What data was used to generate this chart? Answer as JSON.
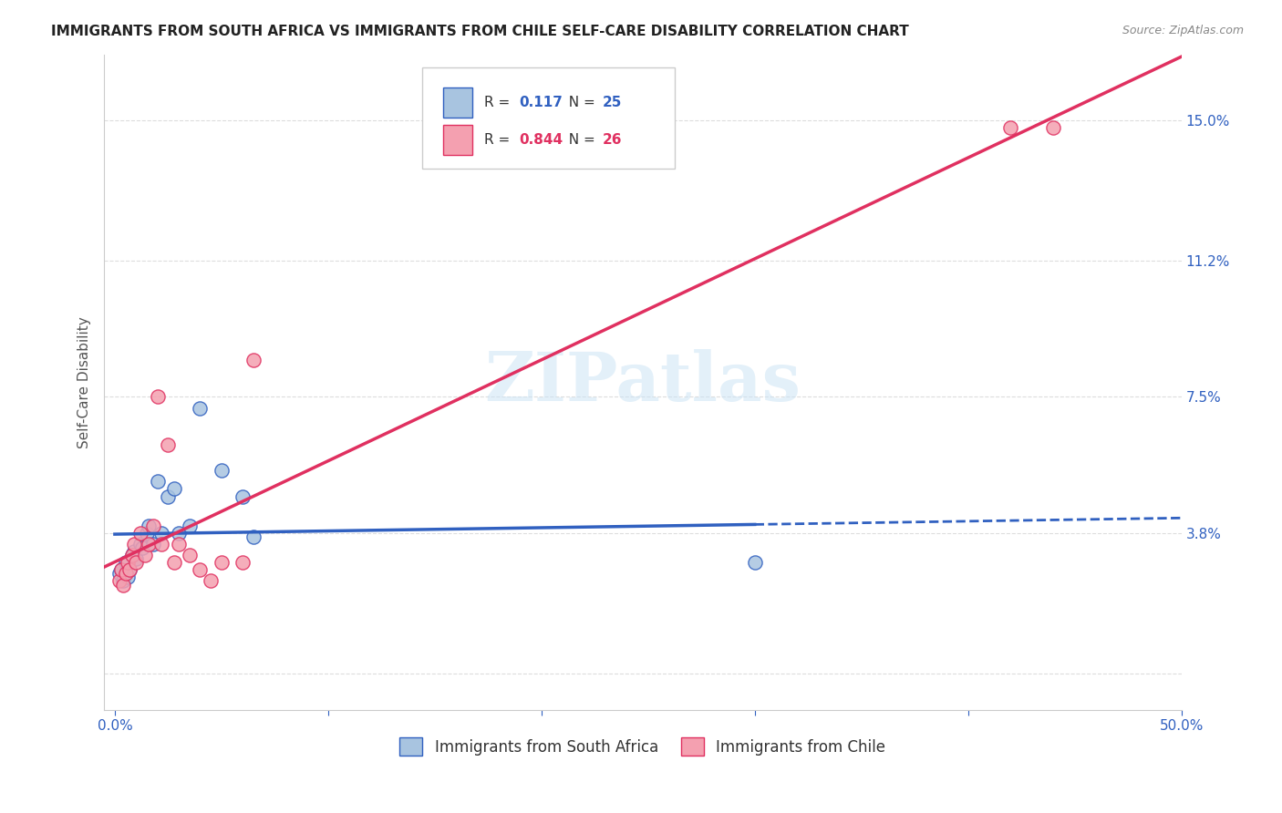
{
  "title": "IMMIGRANTS FROM SOUTH AFRICA VS IMMIGRANTS FROM CHILE SELF-CARE DISABILITY CORRELATION CHART",
  "source": "Source: ZipAtlas.com",
  "ylabel": "Self-Care Disability",
  "xlim": [
    -0.005,
    0.5
  ],
  "ylim": [
    -0.01,
    0.168
  ],
  "xticks": [
    0.0,
    0.1,
    0.2,
    0.3,
    0.4,
    0.5
  ],
  "xticklabels": [
    "0.0%",
    "",
    "",
    "",
    "",
    "50.0%"
  ],
  "ytick_positions": [
    0.0,
    0.038,
    0.075,
    0.112,
    0.15
  ],
  "ytick_labels": [
    "",
    "3.8%",
    "7.5%",
    "11.2%",
    "15.0%"
  ],
  "background_color": "#ffffff",
  "grid_color": "#dddddd",
  "south_africa_color": "#a8c4e0",
  "chile_color": "#f4a0b0",
  "south_africa_line_color": "#3060c0",
  "chile_line_color": "#e03060",
  "watermark": "ZIPatlas",
  "south_africa_x": [
    0.002,
    0.003,
    0.004,
    0.005,
    0.006,
    0.007,
    0.008,
    0.009,
    0.01,
    0.012,
    0.013,
    0.015,
    0.016,
    0.018,
    0.02,
    0.022,
    0.025,
    0.028,
    0.03,
    0.035,
    0.04,
    0.05,
    0.06,
    0.065,
    0.3
  ],
  "south_africa_y": [
    0.027,
    0.028,
    0.025,
    0.03,
    0.026,
    0.028,
    0.032,
    0.033,
    0.031,
    0.035,
    0.034,
    0.038,
    0.04,
    0.035,
    0.052,
    0.038,
    0.048,
    0.05,
    0.038,
    0.04,
    0.072,
    0.055,
    0.048,
    0.037,
    0.03
  ],
  "chile_x": [
    0.002,
    0.003,
    0.004,
    0.005,
    0.006,
    0.007,
    0.008,
    0.009,
    0.01,
    0.012,
    0.014,
    0.016,
    0.018,
    0.02,
    0.022,
    0.025,
    0.028,
    0.03,
    0.035,
    0.04,
    0.045,
    0.05,
    0.06,
    0.065,
    0.42,
    0.44
  ],
  "chile_y": [
    0.025,
    0.028,
    0.024,
    0.027,
    0.03,
    0.028,
    0.032,
    0.035,
    0.03,
    0.038,
    0.032,
    0.035,
    0.04,
    0.075,
    0.035,
    0.062,
    0.03,
    0.035,
    0.032,
    0.028,
    0.025,
    0.03,
    0.03,
    0.085,
    0.148,
    0.148
  ]
}
